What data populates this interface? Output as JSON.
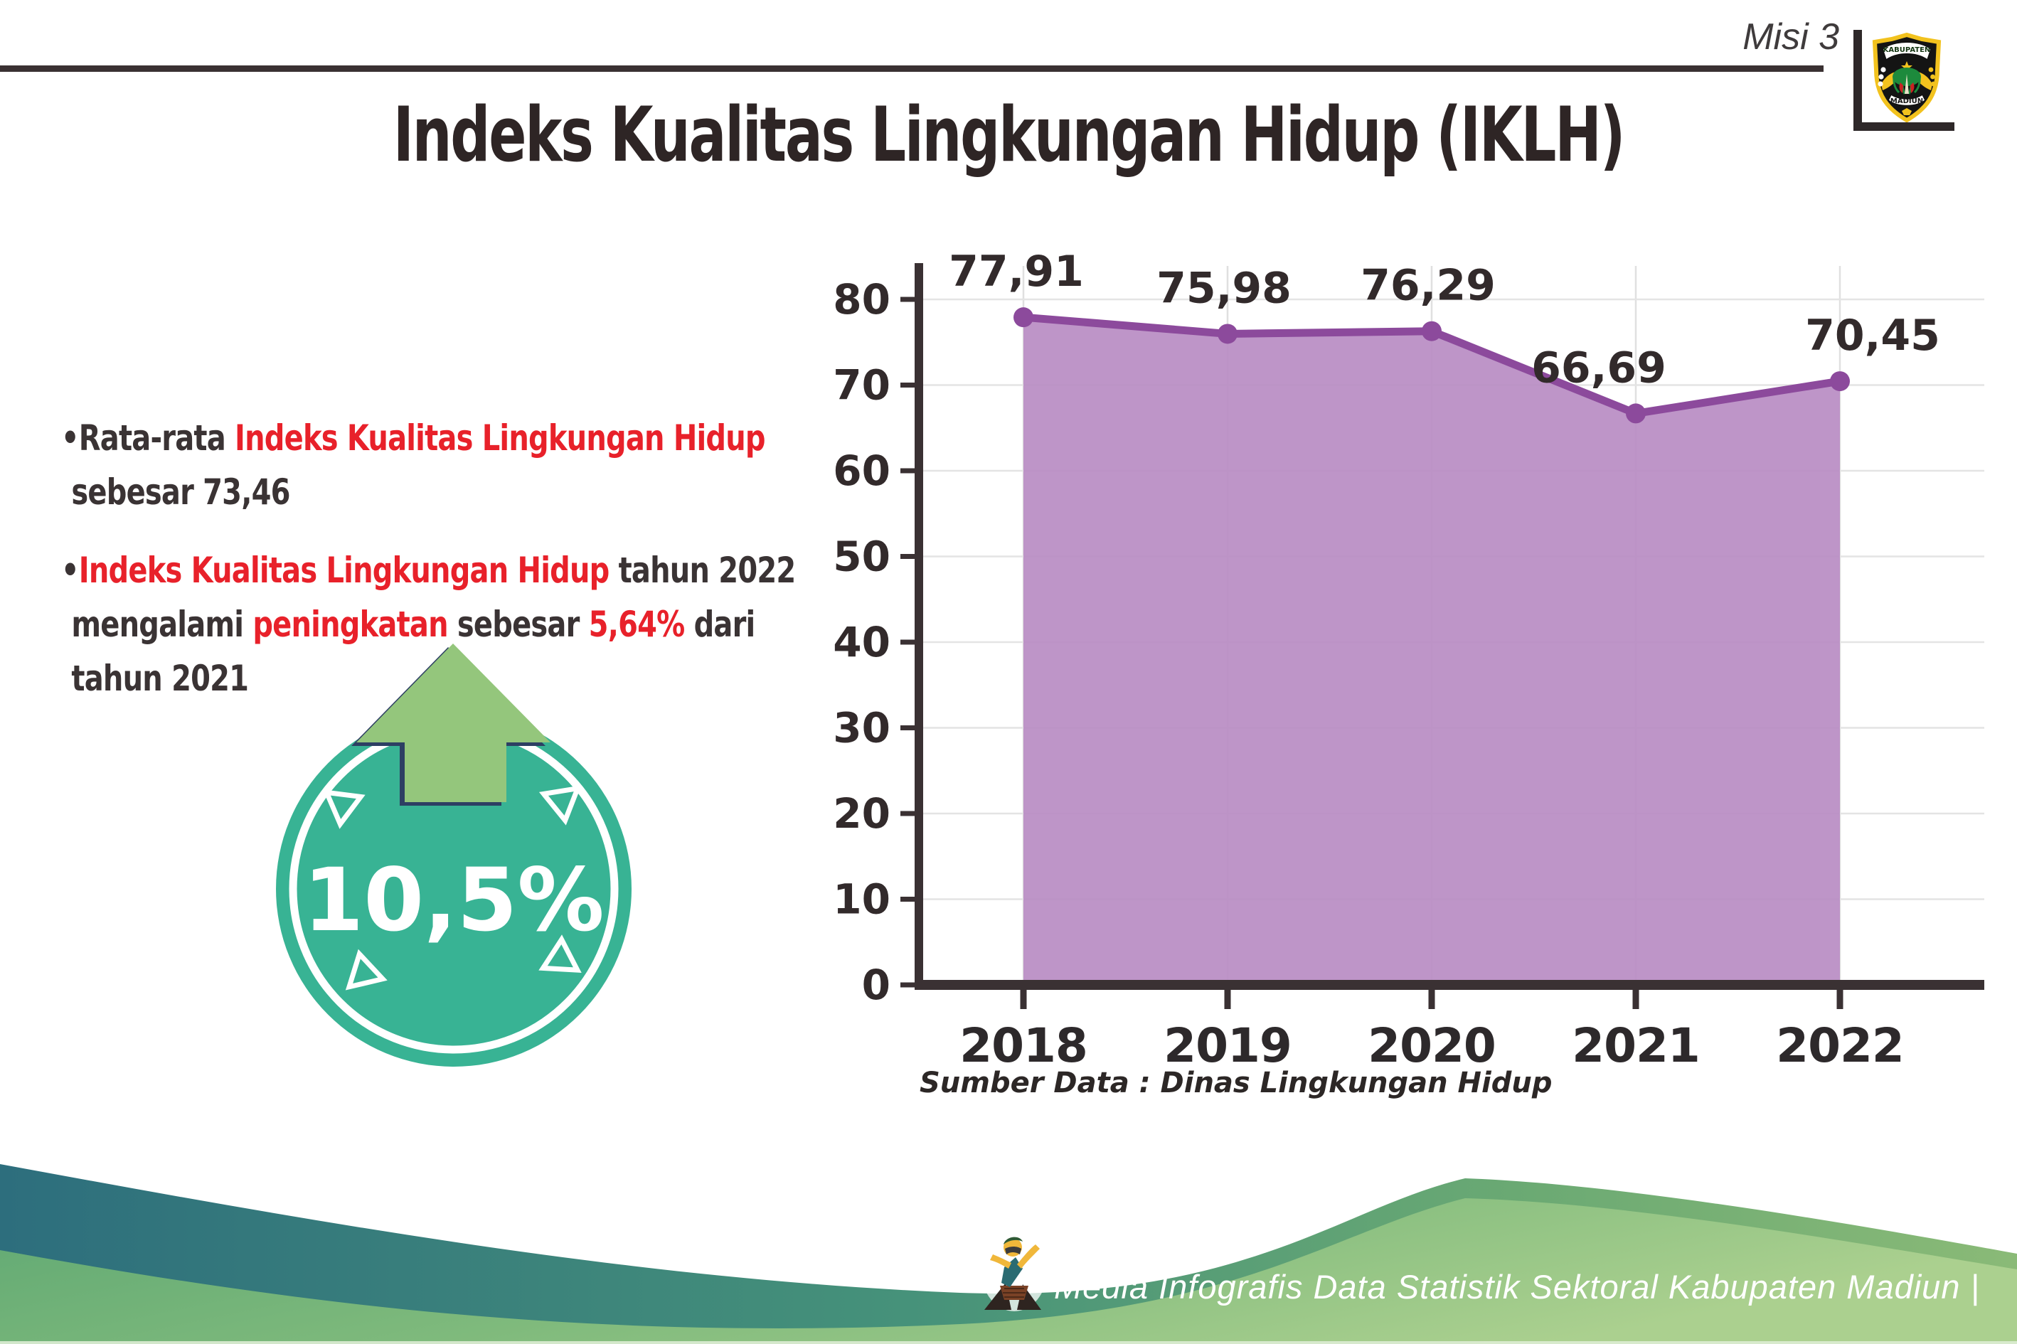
{
  "header": {
    "misi_label": "Misi 3",
    "title": "Indeks Kualitas Lingkungan Hidup (IKLH)",
    "logo": {
      "top_text": "KABUPATEN",
      "bottom_text": "MADIUN"
    }
  },
  "bullets": [
    {
      "lines": [
        {
          "segments": [
            {
              "text": "•Rata-rata ",
              "style": "dark"
            },
            {
              "text": "Indeks Kualitas Lingkungan Hidup",
              "style": "red"
            }
          ]
        },
        {
          "segments": [
            {
              "text": "sebesar 73,46",
              "style": "dark"
            }
          ]
        }
      ]
    },
    {
      "lines": [
        {
          "segments": [
            {
              "text": "•",
              "style": "dark"
            },
            {
              "text": "Indeks Kualitas Lingkungan Hidup",
              "style": "red"
            },
            {
              "text": " tahun 2022",
              "style": "dark"
            }
          ]
        },
        {
          "segments": [
            {
              "text": "mengalami ",
              "style": "dark"
            },
            {
              "text": "peningkatan",
              "style": "red"
            },
            {
              "text": " sebesar ",
              "style": "dark"
            },
            {
              "text": "5,64%",
              "style": "red"
            },
            {
              "text": " dari",
              "style": "dark"
            }
          ]
        },
        {
          "segments": [
            {
              "text": "tahun 2021",
              "style": "dark"
            }
          ]
        }
      ]
    }
  ],
  "badge": {
    "value": "10,5%"
  },
  "chart_data": {
    "type": "area",
    "x": [
      "2018",
      "2019",
      "2020",
      "2021",
      "2022"
    ],
    "values": [
      77.91,
      75.98,
      76.29,
      66.69,
      70.45
    ],
    "point_labels": [
      "77,91",
      "75,98",
      "76,29",
      "66,69",
      "70,45"
    ],
    "ylim": [
      0,
      80
    ],
    "ytick_step": 10,
    "grid": true,
    "legend": "none",
    "source": "Sumber Data : Dinas Lingkungan Hidup",
    "colors": {
      "area_fill": "#b88cc3",
      "line": "#8c4a9c",
      "label": "#322a2b",
      "axis": "#3a3133",
      "grid": "#e4e4e4"
    }
  },
  "footer": {
    "credit": "Media Infografis Data Statistik Sektoral Kabupaten Madiun |"
  },
  "colors": {
    "red_text": "#e8212a",
    "dark_text": "#3a3334",
    "title_text": "#2e2525",
    "badge_teal": "#38b394",
    "arrow_green": "#94c67c",
    "rule_dark": "#3a3132",
    "footer_teal": "#2d6e7d",
    "footer_green": "#7fba7c"
  }
}
